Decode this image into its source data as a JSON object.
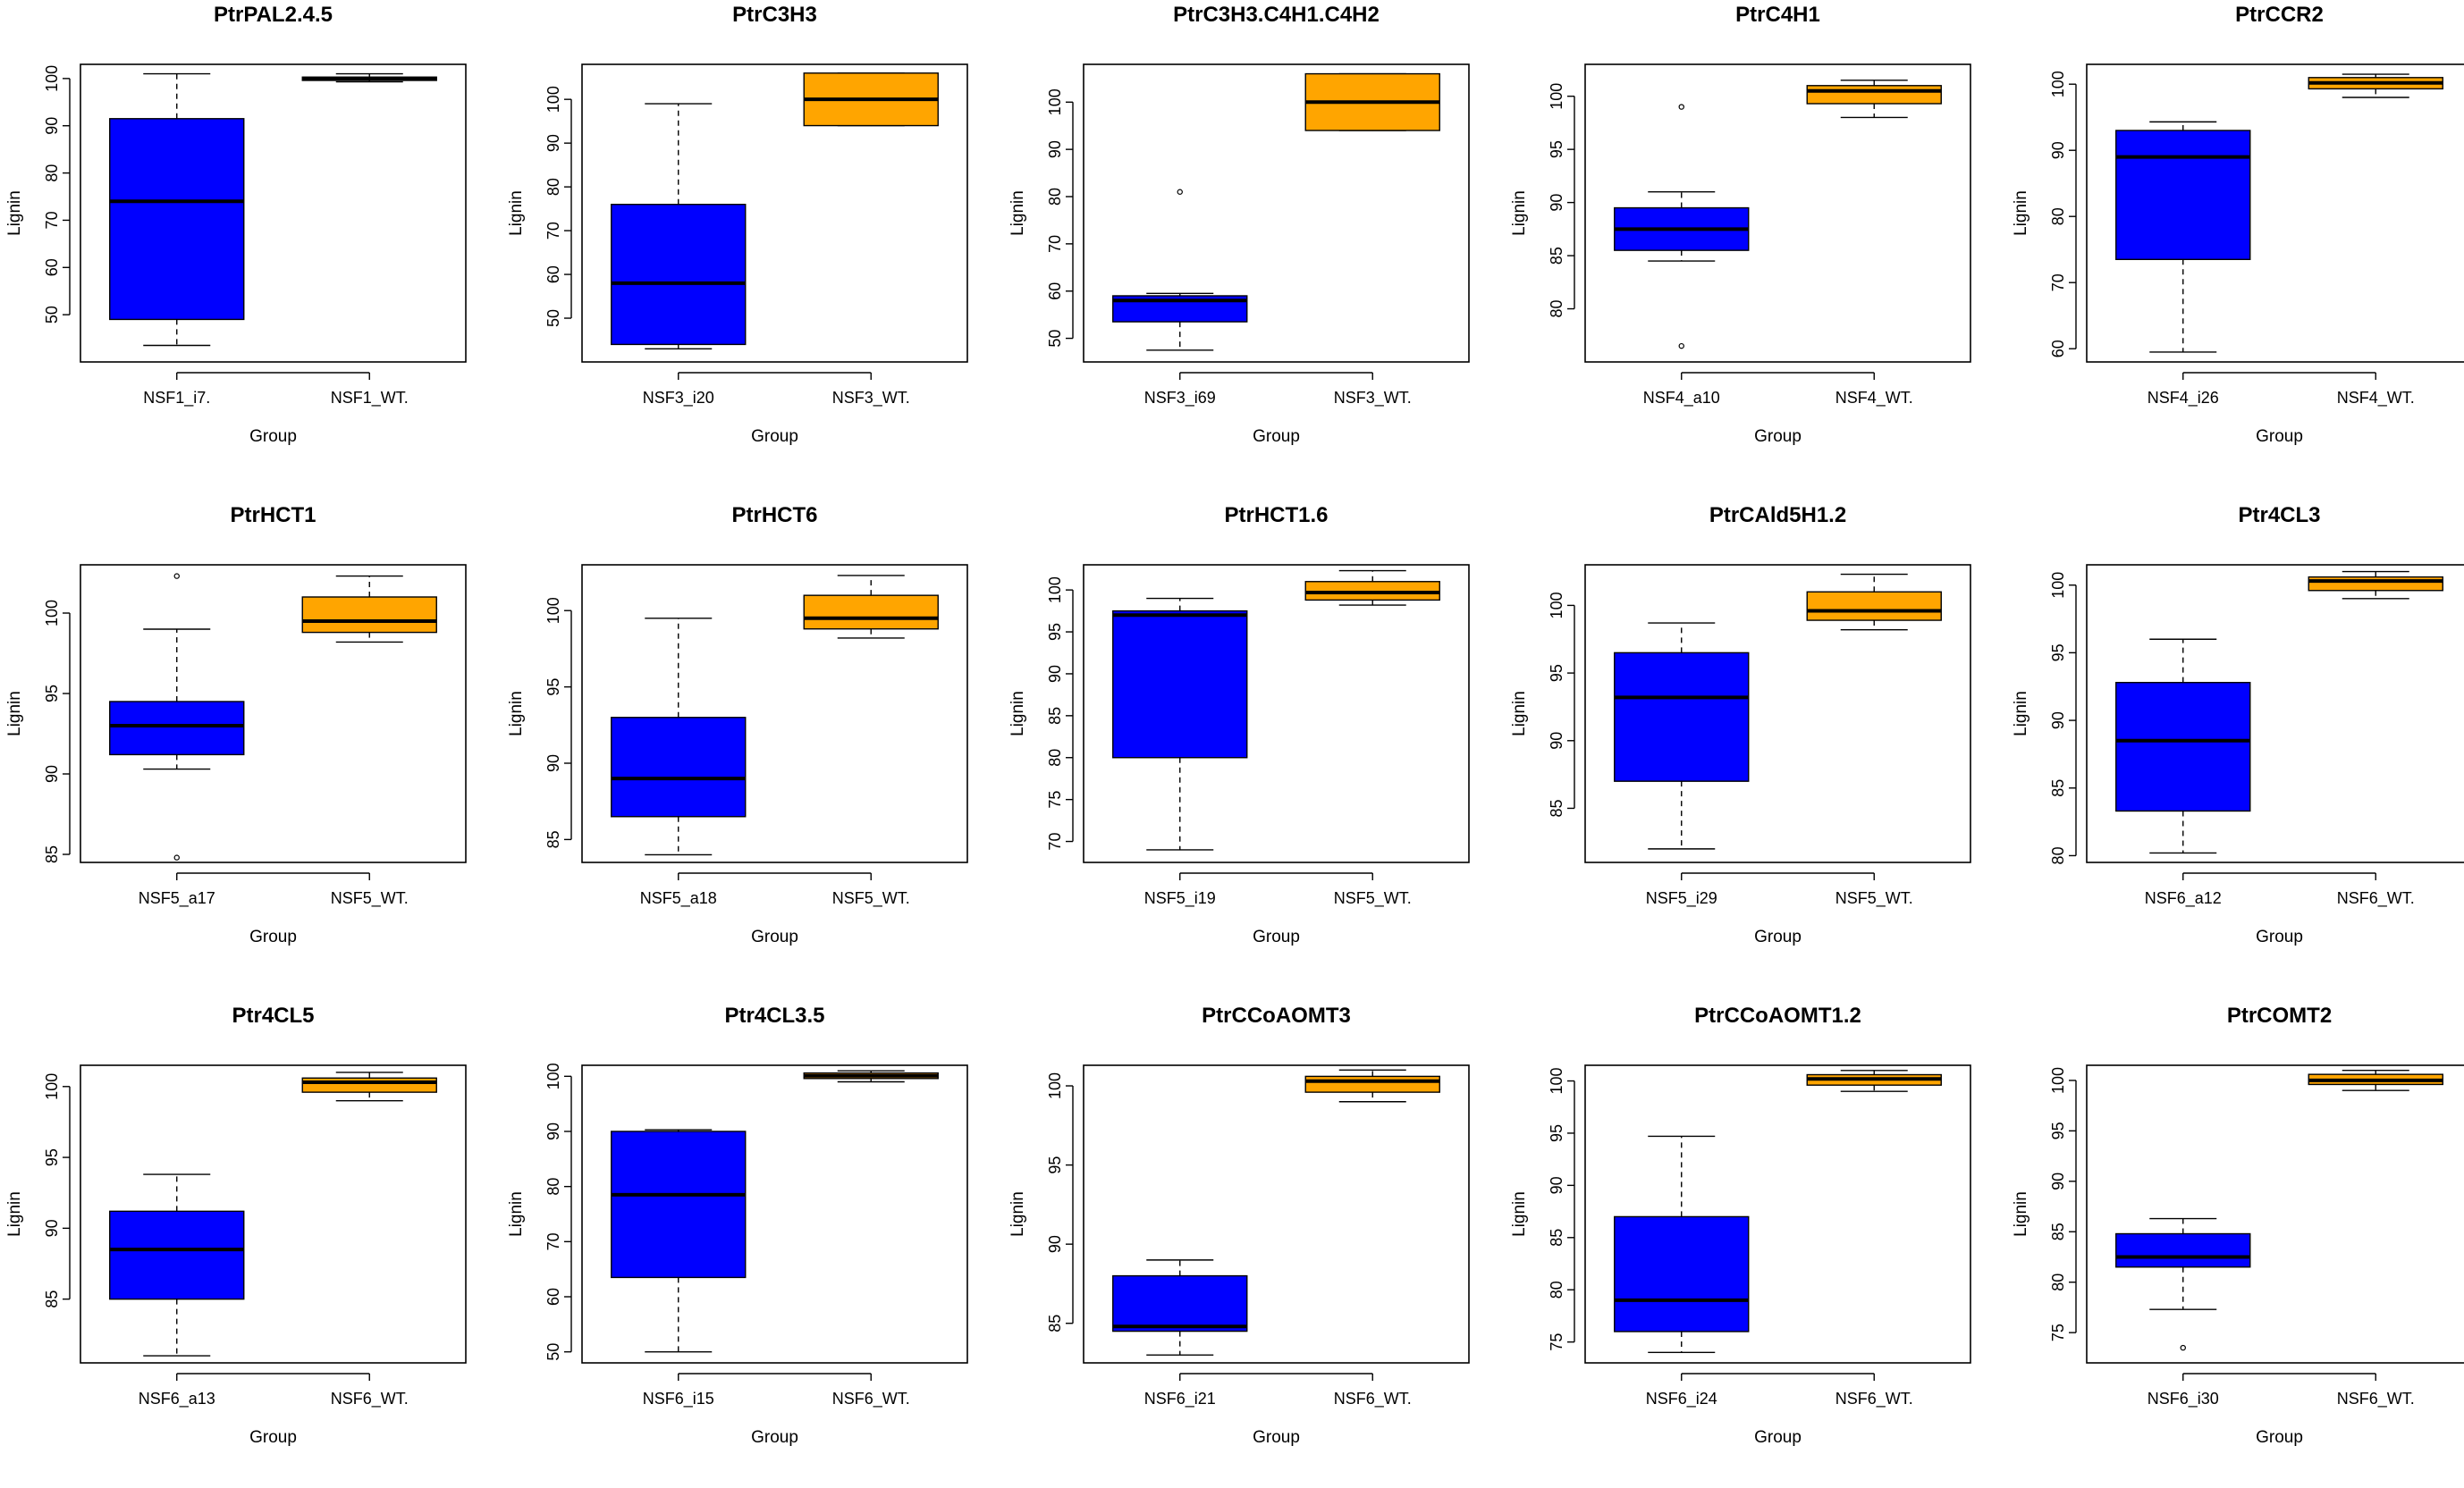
{
  "colors": {
    "mutant": "#0000ff",
    "wildtype": "#ffa500",
    "frame": "#000000"
  },
  "chart_data": [
    {
      "type": "boxplot",
      "title": "PtrPAL2.4.5",
      "xlabel": "Group",
      "ylabel": "Lignin",
      "ylim": [
        40,
        103
      ],
      "yticks": [
        "50",
        "60",
        "70",
        "80",
        "90",
        "100"
      ],
      "categories": [
        "NSF1_i7.",
        "NSF1_WT."
      ],
      "boxes": [
        {
          "whisker_low": 43.5,
          "q1": 49,
          "median": 74,
          "q3": 91.5,
          "whisker_high": 101,
          "outliers": []
        },
        {
          "whisker_low": 99.3,
          "q1": 99.6,
          "median": 100,
          "q3": 100.3,
          "whisker_high": 101,
          "outliers": []
        }
      ]
    },
    {
      "type": "boxplot",
      "title": "PtrC3H3",
      "xlabel": "Group",
      "ylabel": "Lignin",
      "ylim": [
        40,
        108
      ],
      "yticks": [
        "50",
        "60",
        "70",
        "80",
        "90",
        "100"
      ],
      "categories": [
        "NSF3_i20",
        "NSF3_WT."
      ],
      "boxes": [
        {
          "whisker_low": 43,
          "q1": 44,
          "median": 58,
          "q3": 76,
          "whisker_high": 99,
          "outliers": []
        },
        {
          "whisker_low": 94,
          "q1": 94,
          "median": 100,
          "q3": 106,
          "whisker_high": 106,
          "outliers": []
        }
      ]
    },
    {
      "type": "boxplot",
      "title": "PtrC3H3.C4H1.C4H2",
      "xlabel": "Group",
      "ylabel": "Lignin",
      "ylim": [
        45,
        108
      ],
      "yticks": [
        "50",
        "60",
        "70",
        "80",
        "90",
        "100"
      ],
      "categories": [
        "NSF3_i69",
        "NSF3_WT."
      ],
      "boxes": [
        {
          "whisker_low": 47.5,
          "q1": 53.5,
          "median": 58,
          "q3": 59,
          "whisker_high": 59.5,
          "outliers": [
            81
          ]
        },
        {
          "whisker_low": 94,
          "q1": 94,
          "median": 100,
          "q3": 106,
          "whisker_high": 106,
          "outliers": []
        }
      ]
    },
    {
      "type": "boxplot",
      "title": "PtrC4H1",
      "xlabel": "Group",
      "ylabel": "Lignin",
      "ylim": [
        75,
        103
      ],
      "yticks": [
        "80",
        "85",
        "90",
        "95",
        "100"
      ],
      "categories": [
        "NSF4_a10",
        "NSF4_WT."
      ],
      "boxes": [
        {
          "whisker_low": 84.5,
          "q1": 85.5,
          "median": 87.5,
          "q3": 89.5,
          "whisker_high": 91,
          "outliers": [
            99,
            76.5
          ]
        },
        {
          "whisker_low": 98,
          "q1": 99.3,
          "median": 100.5,
          "q3": 101,
          "whisker_high": 101.5,
          "outliers": []
        }
      ]
    },
    {
      "type": "boxplot",
      "title": "PtrCCR2",
      "xlabel": "Group",
      "ylabel": "Lignin",
      "ylim": [
        58,
        103
      ],
      "yticks": [
        "60",
        "70",
        "80",
        "90",
        "100"
      ],
      "categories": [
        "NSF4_i26",
        "NSF4_WT."
      ],
      "boxes": [
        {
          "whisker_low": 59.5,
          "q1": 73.5,
          "median": 89,
          "q3": 93,
          "whisker_high": 94.3,
          "outliers": []
        },
        {
          "whisker_low": 98,
          "q1": 99.3,
          "median": 100.2,
          "q3": 101,
          "whisker_high": 101.5,
          "outliers": []
        }
      ]
    },
    {
      "type": "boxplot",
      "title": "PtrHCT1",
      "xlabel": "Group",
      "ylabel": "Lignin",
      "ylim": [
        84.5,
        103
      ],
      "yticks": [
        "85",
        "90",
        "95",
        "100"
      ],
      "categories": [
        "NSF5_a17",
        "NSF5_WT."
      ],
      "boxes": [
        {
          "whisker_low": 90.3,
          "q1": 91.2,
          "median": 93,
          "q3": 94.5,
          "whisker_high": 99,
          "outliers": [
            102.3,
            84.8
          ]
        },
        {
          "whisker_low": 98.2,
          "q1": 98.8,
          "median": 99.5,
          "q3": 101,
          "whisker_high": 102.3,
          "outliers": []
        }
      ]
    },
    {
      "type": "boxplot",
      "title": "PtrHCT6",
      "xlabel": "Group",
      "ylabel": "Lignin",
      "ylim": [
        83.5,
        103
      ],
      "yticks": [
        "85",
        "90",
        "95",
        "100"
      ],
      "categories": [
        "NSF5_a18",
        "NSF5_WT."
      ],
      "boxes": [
        {
          "whisker_low": 84,
          "q1": 86.5,
          "median": 89,
          "q3": 93,
          "whisker_high": 99.5,
          "outliers": []
        },
        {
          "whisker_low": 98.2,
          "q1": 98.8,
          "median": 99.5,
          "q3": 101,
          "whisker_high": 102.3,
          "outliers": []
        }
      ]
    },
    {
      "type": "boxplot",
      "title": "PtrHCT1.6",
      "xlabel": "Group",
      "ylabel": "Lignin",
      "ylim": [
        67.5,
        103
      ],
      "yticks": [
        "70",
        "75",
        "80",
        "85",
        "90",
        "95",
        "100"
      ],
      "categories": [
        "NSF5_i19",
        "NSF5_WT."
      ],
      "boxes": [
        {
          "whisker_low": 69,
          "q1": 80,
          "median": 97,
          "q3": 97.5,
          "whisker_high": 99,
          "outliers": []
        },
        {
          "whisker_low": 98.2,
          "q1": 98.8,
          "median": 99.7,
          "q3": 101,
          "whisker_high": 102.3,
          "outliers": []
        }
      ]
    },
    {
      "type": "boxplot",
      "title": "PtrCAld5H1.2",
      "xlabel": "Group",
      "ylabel": "Lignin",
      "ylim": [
        81,
        103
      ],
      "yticks": [
        "85",
        "90",
        "95",
        "100"
      ],
      "categories": [
        "NSF5_i29",
        "NSF5_WT."
      ],
      "boxes": [
        {
          "whisker_low": 82,
          "q1": 87,
          "median": 93.2,
          "q3": 96.5,
          "whisker_high": 98.7,
          "outliers": []
        },
        {
          "whisker_low": 98.2,
          "q1": 98.9,
          "median": 99.6,
          "q3": 101,
          "whisker_high": 102.3,
          "outliers": []
        }
      ]
    },
    {
      "type": "boxplot",
      "title": "Ptr4CL3",
      "xlabel": "Group",
      "ylabel": "Lignin",
      "ylim": [
        79.5,
        101.5
      ],
      "yticks": [
        "80",
        "85",
        "90",
        "95",
        "100"
      ],
      "categories": [
        "NSF6_a12",
        "NSF6_WT."
      ],
      "boxes": [
        {
          "whisker_low": 80.2,
          "q1": 83.3,
          "median": 88.5,
          "q3": 92.8,
          "whisker_high": 96,
          "outliers": []
        },
        {
          "whisker_low": 99,
          "q1": 99.6,
          "median": 100.3,
          "q3": 100.6,
          "whisker_high": 101,
          "outliers": []
        }
      ]
    },
    {
      "type": "boxplot",
      "title": "Ptr4CL5",
      "xlabel": "Group",
      "ylabel": "Lignin",
      "ylim": [
        80.5,
        101.5
      ],
      "yticks": [
        "85",
        "90",
        "95",
        "100"
      ],
      "categories": [
        "NSF6_a13",
        "NSF6_WT."
      ],
      "boxes": [
        {
          "whisker_low": 81,
          "q1": 85,
          "median": 88.5,
          "q3": 91.2,
          "whisker_high": 93.8,
          "outliers": []
        },
        {
          "whisker_low": 99,
          "q1": 99.6,
          "median": 100.3,
          "q3": 100.6,
          "whisker_high": 101,
          "outliers": []
        }
      ]
    },
    {
      "type": "boxplot",
      "title": "Ptr4CL3.5",
      "xlabel": "Group",
      "ylabel": "Lignin",
      "ylim": [
        48,
        102
      ],
      "yticks": [
        "50",
        "60",
        "70",
        "80",
        "90",
        "100"
      ],
      "categories": [
        "NSF6_i15",
        "NSF6_WT."
      ],
      "boxes": [
        {
          "whisker_low": 50,
          "q1": 63.5,
          "median": 78.5,
          "q3": 90,
          "whisker_high": 90.3,
          "outliers": []
        },
        {
          "whisker_low": 99,
          "q1": 99.6,
          "median": 100.1,
          "q3": 100.6,
          "whisker_high": 101,
          "outliers": []
        }
      ]
    },
    {
      "type": "boxplot",
      "title": "PtrCCoAOMT3",
      "xlabel": "Group",
      "ylabel": "Lignin",
      "ylim": [
        82.5,
        101.3
      ],
      "yticks": [
        "85",
        "90",
        "95",
        "100"
      ],
      "categories": [
        "NSF6_i21",
        "NSF6_WT."
      ],
      "boxes": [
        {
          "whisker_low": 83,
          "q1": 84.5,
          "median": 84.8,
          "q3": 88,
          "whisker_high": 89,
          "outliers": []
        },
        {
          "whisker_low": 99,
          "q1": 99.6,
          "median": 100.3,
          "q3": 100.6,
          "whisker_high": 101,
          "outliers": []
        }
      ]
    },
    {
      "type": "boxplot",
      "title": "PtrCCoAOMT1.2",
      "xlabel": "Group",
      "ylabel": "Lignin",
      "ylim": [
        73,
        101.5
      ],
      "yticks": [
        "75",
        "80",
        "85",
        "90",
        "95",
        "100"
      ],
      "categories": [
        "NSF6_i24",
        "NSF6_WT."
      ],
      "boxes": [
        {
          "whisker_low": 74,
          "q1": 76,
          "median": 79,
          "q3": 87,
          "whisker_high": 94.7,
          "outliers": []
        },
        {
          "whisker_low": 99,
          "q1": 99.6,
          "median": 100.2,
          "q3": 100.6,
          "whisker_high": 101,
          "outliers": []
        }
      ]
    },
    {
      "type": "boxplot",
      "title": "PtrCOMT2",
      "xlabel": "Group",
      "ylabel": "Lignin",
      "ylim": [
        72,
        101.5
      ],
      "yticks": [
        "75",
        "80",
        "85",
        "90",
        "95",
        "100"
      ],
      "categories": [
        "NSF6_i30",
        "NSF6_WT."
      ],
      "boxes": [
        {
          "whisker_low": 77.3,
          "q1": 81.5,
          "median": 82.5,
          "q3": 84.8,
          "whisker_high": 86.3,
          "outliers": [
            73.5
          ]
        },
        {
          "whisker_low": 99,
          "q1": 99.6,
          "median": 100,
          "q3": 100.6,
          "whisker_high": 101,
          "outliers": []
        }
      ]
    }
  ]
}
